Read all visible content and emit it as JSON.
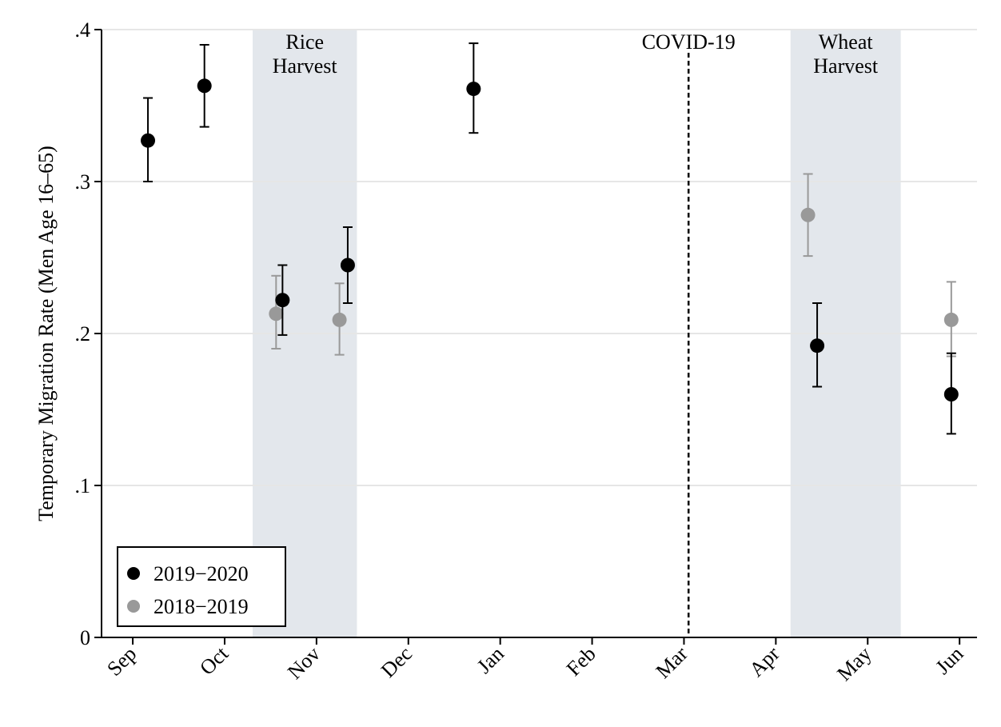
{
  "chart_data": {
    "type": "scatter",
    "y_label": "Temporary Migration Rate (Men Age 16–65)",
    "xlim": [
      -0.34,
      9.19
    ],
    "xticks": [
      {
        "value": 0,
        "label": "Sep"
      },
      {
        "value": 1,
        "label": "Oct"
      },
      {
        "value": 2,
        "label": "Nov"
      },
      {
        "value": 3,
        "label": "Dec"
      },
      {
        "value": 4,
        "label": "Jan"
      },
      {
        "value": 5,
        "label": "Feb"
      },
      {
        "value": 6,
        "label": "Mar"
      },
      {
        "value": 7,
        "label": "Apr"
      },
      {
        "value": 8,
        "label": "May"
      },
      {
        "value": 9,
        "label": "Jun"
      }
    ],
    "ylim": [
      0,
      0.4
    ],
    "yticks": [
      0,
      {
        "value": 0.1,
        "label": ".1"
      },
      {
        "value": 0.2,
        "label": ".2"
      },
      {
        "value": 0.3,
        "label": ".3"
      },
      {
        "value": 0.4,
        "label": ".4"
      }
    ],
    "grid": true,
    "legend": "lower left",
    "shaded": [
      {
        "lines": [
          "Rice",
          "Harvest"
        ],
        "range": [
          1.305,
          2.44
        ]
      },
      {
        "lines": [
          "Wheat",
          "Harvest"
        ],
        "range": [
          7.16,
          8.36
        ]
      }
    ],
    "vline": {
      "label": "COVID-19",
      "x": 6.05
    },
    "series": [
      {
        "name": "2019−2020",
        "color": "#000000",
        "x": [
          0.165,
          0.78,
          1.63,
          2.34,
          3.71,
          7.45,
          8.91
        ],
        "values": [
          0.327,
          0.363,
          0.222,
          0.245,
          0.361,
          0.192,
          0.16
        ],
        "err_low": [
          0.3,
          0.336,
          0.199,
          0.22,
          0.332,
          0.165,
          0.134
        ],
        "err_high": [
          0.355,
          0.39,
          0.245,
          0.27,
          0.391,
          0.22,
          0.187
        ]
      },
      {
        "name": "2018−2019",
        "color": "#999999",
        "x": [
          1.56,
          2.25,
          7.35,
          8.91
        ],
        "values": [
          0.213,
          0.209,
          0.278,
          0.209
        ],
        "err_low": [
          0.19,
          0.186,
          0.251,
          0.185
        ],
        "err_high": [
          0.238,
          0.233,
          0.305,
          0.234
        ]
      }
    ]
  }
}
